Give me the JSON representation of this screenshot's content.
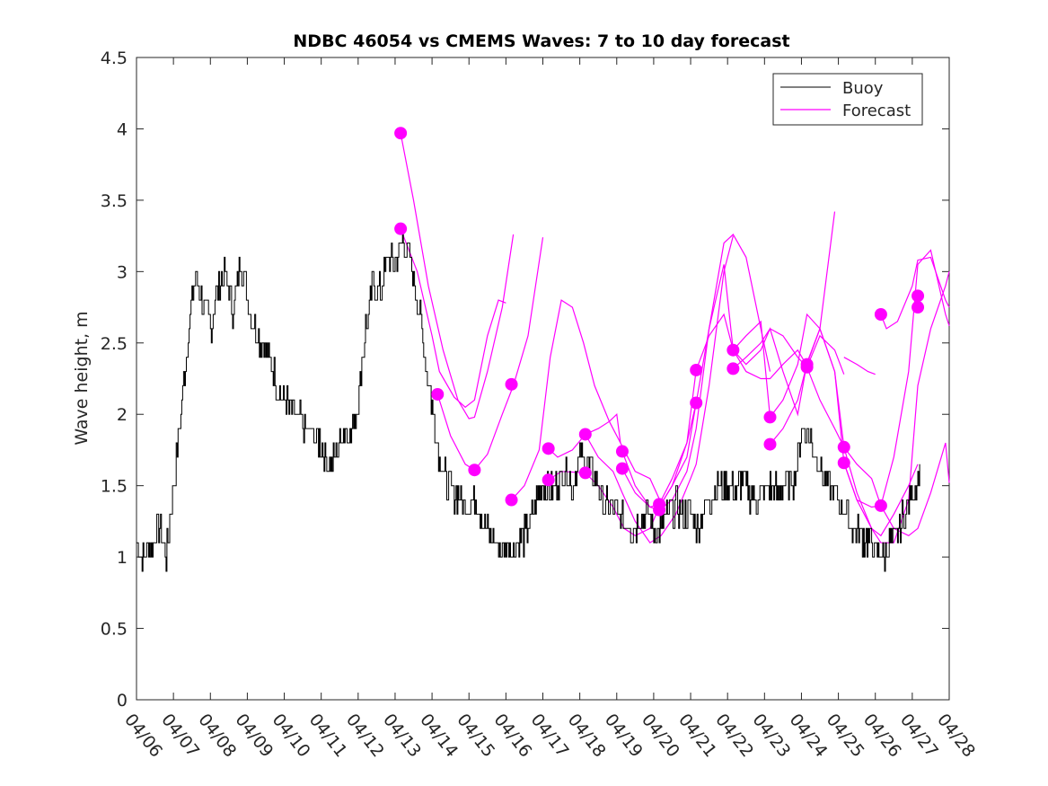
{
  "chart_data": {
    "type": "line",
    "title": "NDBC 46054 vs CMEMS Waves: 7 to 10 day forecast",
    "xlabel": "",
    "ylabel": "Wave height, m",
    "xlim": [
      "04/06",
      "04/28"
    ],
    "ylim": [
      0,
      4.5
    ],
    "x_ticks": [
      "04/06",
      "04/07",
      "04/08",
      "04/09",
      "04/10",
      "04/11",
      "04/12",
      "04/13",
      "04/14",
      "04/15",
      "04/16",
      "04/17",
      "04/18",
      "04/19",
      "04/20",
      "04/21",
      "04/22",
      "04/23",
      "04/24",
      "04/25",
      "04/26",
      "04/27",
      "04/28"
    ],
    "y_ticks": [
      "0",
      "0.5",
      "1",
      "1.5",
      "2",
      "2.5",
      "3",
      "3.5",
      "4",
      "4.5"
    ],
    "grid": false,
    "legend_position": "top-right",
    "colors": {
      "buoy": "#000000",
      "forecast": "#ff00ff"
    },
    "series": [
      {
        "name": "Buoy",
        "x_day_of_april": [
          6.0,
          6.2,
          6.4,
          6.6,
          6.8,
          7.0,
          7.2,
          7.4,
          7.6,
          7.8,
          8.0,
          8.2,
          8.4,
          8.6,
          8.8,
          9.0,
          9.2,
          9.4,
          9.6,
          9.8,
          10.0,
          10.2,
          10.4,
          10.6,
          10.8,
          11.0,
          11.2,
          11.4,
          11.6,
          11.8,
          12.0,
          12.2,
          12.4,
          12.6,
          12.8,
          13.0,
          13.2,
          13.4,
          13.6,
          13.8,
          14.0,
          14.2,
          14.4,
          14.6,
          14.8,
          15.0,
          15.2,
          15.4,
          15.6,
          15.8,
          16.0,
          16.2,
          16.4,
          16.6,
          16.8,
          17.0,
          17.2,
          17.4,
          17.6,
          17.8,
          18.0,
          18.2,
          18.4,
          18.6,
          18.8,
          19.0,
          19.2,
          19.4,
          19.6,
          19.8,
          20.0,
          20.2,
          20.4,
          20.6,
          20.8,
          21.0,
          21.2,
          21.4,
          21.6,
          21.8,
          22.0,
          22.2,
          22.4,
          22.6,
          22.8,
          23.0,
          23.2,
          23.4,
          23.6,
          23.8,
          24.0,
          24.2,
          24.4,
          24.6,
          24.8,
          25.0,
          25.2,
          25.4,
          25.6,
          25.8,
          26.0,
          26.2,
          26.4,
          26.6,
          26.8,
          27.0,
          27.2
        ],
        "values": [
          1.1,
          1.0,
          1.1,
          1.2,
          1.0,
          1.5,
          2.0,
          2.6,
          3.0,
          2.8,
          2.6,
          2.9,
          3.0,
          2.7,
          3.1,
          2.8,
          2.6,
          2.5,
          2.4,
          2.2,
          2.1,
          2.0,
          1.95,
          1.9,
          1.85,
          1.8,
          1.65,
          1.7,
          1.9,
          1.85,
          2.1,
          2.6,
          2.9,
          2.85,
          3.1,
          3.05,
          3.25,
          3.1,
          2.8,
          2.4,
          2.05,
          1.7,
          1.5,
          1.45,
          1.4,
          1.35,
          1.4,
          1.25,
          1.15,
          1.05,
          1.1,
          1.05,
          1.1,
          1.2,
          1.4,
          1.5,
          1.45,
          1.55,
          1.6,
          1.5,
          1.7,
          1.65,
          1.55,
          1.4,
          1.35,
          1.3,
          1.25,
          1.2,
          1.25,
          1.3,
          1.2,
          1.2,
          1.3,
          1.35,
          1.3,
          1.3,
          1.2,
          1.35,
          1.45,
          1.5,
          1.5,
          1.45,
          1.55,
          1.45,
          1.4,
          1.45,
          1.5,
          1.45,
          1.5,
          1.55,
          1.9,
          1.85,
          1.7,
          1.55,
          1.5,
          1.4,
          1.3,
          1.2,
          1.15,
          1.1,
          1.05,
          1.0,
          1.1,
          1.2,
          1.3,
          1.45,
          1.65
        ]
      },
      {
        "name": "Forecast",
        "tracks": [
          {
            "x": [
              13.15,
              13.5,
              13.9,
              14.3,
              14.7,
              15.0,
              15.15,
              15.5,
              15.9,
              16.2
            ],
            "y": [
              3.97,
              3.5,
              2.9,
              2.45,
              2.1,
              1.97,
              1.98,
              2.3,
              2.75,
              3.26
            ]
          },
          {
            "x": [
              13.15,
              13.6,
              14.0,
              14.2,
              14.6,
              14.9,
              15.15,
              15.5,
              15.8,
              16.0
            ],
            "y": [
              3.3,
              3.0,
              2.55,
              2.3,
              2.12,
              2.05,
              2.1,
              2.55,
              2.8,
              2.78
            ]
          },
          {
            "x": [
              14.15,
              14.5,
              14.9,
              15.15,
              15.5,
              15.9,
              16.2,
              16.6,
              17.0
            ],
            "y": [
              2.14,
              1.85,
              1.65,
              1.61,
              1.72,
              2.0,
              2.2,
              2.55,
              3.24
            ]
          },
          {
            "x": [
              16.15,
              16.5,
              16.9,
              17.2,
              17.5,
              17.8,
              18.1,
              18.4,
              18.8,
              19.1,
              19.5,
              19.9,
              20.2
            ],
            "y": [
              1.4,
              1.5,
              1.75,
              2.4,
              2.8,
              2.75,
              2.5,
              2.2,
              1.95,
              1.8,
              1.6,
              1.55,
              1.38
            ]
          },
          {
            "x": [
              17.15,
              17.4,
              17.8,
              18.15,
              18.5,
              18.8,
              19.0,
              19.1
            ],
            "y": [
              1.76,
              1.7,
              1.75,
              1.86,
              1.9,
              1.95,
              2.0,
              1.8
            ]
          },
          {
            "x": [
              17.15,
              17.5,
              18.15,
              18.5,
              18.9,
              19.2,
              19.5,
              19.9,
              20.15,
              20.5,
              20.9,
              21.15
            ],
            "y": [
              1.54,
              1.6,
              1.59,
              1.5,
              1.35,
              1.2,
              1.15,
              1.2,
              1.35,
              1.5,
              1.8,
              2.08
            ]
          },
          {
            "x": [
              18.15,
              18.5,
              18.9,
              19.15,
              19.5,
              19.9,
              20.2,
              20.6,
              21.0,
              21.15,
              21.5,
              21.9,
              22.15
            ],
            "y": [
              1.86,
              1.7,
              1.6,
              1.45,
              1.25,
              1.1,
              1.15,
              1.3,
              1.55,
              1.65,
              2.2,
              3.0,
              3.25
            ]
          },
          {
            "x": [
              19.15,
              19.5,
              19.9,
              20.15,
              20.5,
              20.9,
              21.15,
              21.5,
              21.9,
              22.15,
              22.5,
              22.9,
              23.15
            ],
            "y": [
              1.74,
              1.5,
              1.35,
              1.33,
              1.4,
              1.6,
              1.9,
              2.6,
              3.2,
              3.26,
              3.1,
              2.6,
              2.3
            ]
          },
          {
            "x": [
              19.15,
              19.5,
              19.9,
              20.15,
              20.5,
              20.9,
              21.15,
              21.5,
              21.9,
              22.15,
              22.5,
              22.9,
              23.15,
              23.5,
              23.9,
              24.15
            ],
            "y": [
              1.62,
              1.45,
              1.35,
              1.37,
              1.55,
              1.8,
              2.31,
              2.55,
              2.7,
              2.45,
              2.3,
              2.25,
              2.25,
              2.35,
              2.45,
              2.34
            ]
          },
          {
            "x": [
              20.15,
              20.5,
              20.9,
              21.15,
              21.5,
              21.9,
              22.15,
              22.5,
              22.9,
              23.15,
              23.5,
              23.9,
              24.15,
              24.5,
              24.9
            ],
            "y": [
              1.35,
              1.5,
              1.7,
              2.08,
              2.6,
              3.05,
              2.45,
              2.35,
              2.45,
              2.6,
              2.3,
              2.0,
              2.36,
              2.6,
              3.42
            ]
          },
          {
            "x": [
              22.15,
              22.5,
              22.9,
              23.15,
              23.5,
              23.9,
              24.15,
              24.5,
              24.9,
              25.15,
              25.5,
              25.9,
              26.15,
              26.5,
              26.9,
              27.15
            ],
            "y": [
              2.45,
              2.55,
              2.65,
              1.98,
              2.1,
              2.35,
              2.7,
              2.6,
              2.3,
              1.77,
              1.45,
              1.2,
              1.15,
              1.3,
              1.5,
              1.65
            ]
          },
          {
            "x": [
              22.15,
              22.5,
              22.9,
              23.15,
              23.5,
              23.9,
              24.15,
              24.5,
              24.9,
              25.15
            ],
            "y": [
              2.32,
              2.4,
              2.5,
              2.6,
              2.55,
              2.4,
              2.33,
              2.55,
              2.45,
              2.28
            ]
          },
          {
            "x": [
              23.15,
              23.5,
              23.9,
              24.15,
              24.5,
              24.9,
              25.15,
              25.5,
              25.9,
              26.15,
              26.5,
              26.9,
              27.15,
              27.5,
              27.9,
              28.0
            ],
            "y": [
              1.79,
              1.9,
              2.1,
              2.35,
              2.6,
              2.3,
              1.66,
              1.4,
              1.2,
              1.1,
              1.1,
              1.4,
              2.2,
              2.6,
              2.9,
              3.0
            ]
          },
          {
            "x": [
              24.15,
              24.5,
              24.9,
              25.15,
              25.5,
              25.9,
              26.15,
              26.5,
              26.9,
              27.15,
              27.5,
              27.9,
              28.0
            ],
            "y": [
              2.33,
              2.1,
              1.9,
              1.77,
              1.65,
              1.55,
              1.36,
              1.2,
              1.15,
              1.2,
              1.45,
              1.8,
              1.52
            ]
          },
          {
            "x": [
              25.15,
              25.5,
              25.9,
              26.15,
              26.5,
              26.9,
              27.15,
              27.5,
              27.9,
              28.0
            ],
            "y": [
              1.66,
              1.4,
              1.35,
              1.36,
              1.7,
              2.3,
              3.05,
              3.15,
              2.7,
              2.62
            ]
          },
          {
            "x": [
              26.15,
              26.3,
              26.6,
              27.0,
              27.15,
              27.5,
              27.9,
              28.0
            ],
            "y": [
              2.7,
              2.6,
              2.65,
              2.9,
              3.08,
              3.1,
              2.8,
              2.75
            ]
          },
          {
            "x": [
              25.15,
              25.5,
              25.8,
              26.0
            ],
            "y": [
              2.4,
              2.35,
              2.3,
              2.28
            ]
          }
        ],
        "markers_x": [
          13.15,
          13.15,
          14.15,
          15.15,
          16.15,
          16.15,
          17.15,
          17.15,
          18.15,
          18.15,
          19.15,
          19.15,
          20.15,
          20.15,
          21.15,
          21.15,
          22.15,
          22.15,
          23.15,
          23.15,
          24.15,
          24.15,
          25.15,
          25.15,
          26.15,
          26.15,
          27.15,
          27.15
        ],
        "markers_y": [
          3.97,
          3.3,
          2.14,
          1.61,
          2.21,
          1.4,
          1.76,
          1.54,
          1.86,
          1.59,
          1.74,
          1.62,
          1.37,
          1.33,
          2.31,
          2.08,
          2.45,
          2.32,
          1.98,
          1.79,
          2.35,
          2.33,
          1.77,
          1.66,
          2.7,
          1.36,
          2.83,
          2.75
        ]
      }
    ]
  }
}
